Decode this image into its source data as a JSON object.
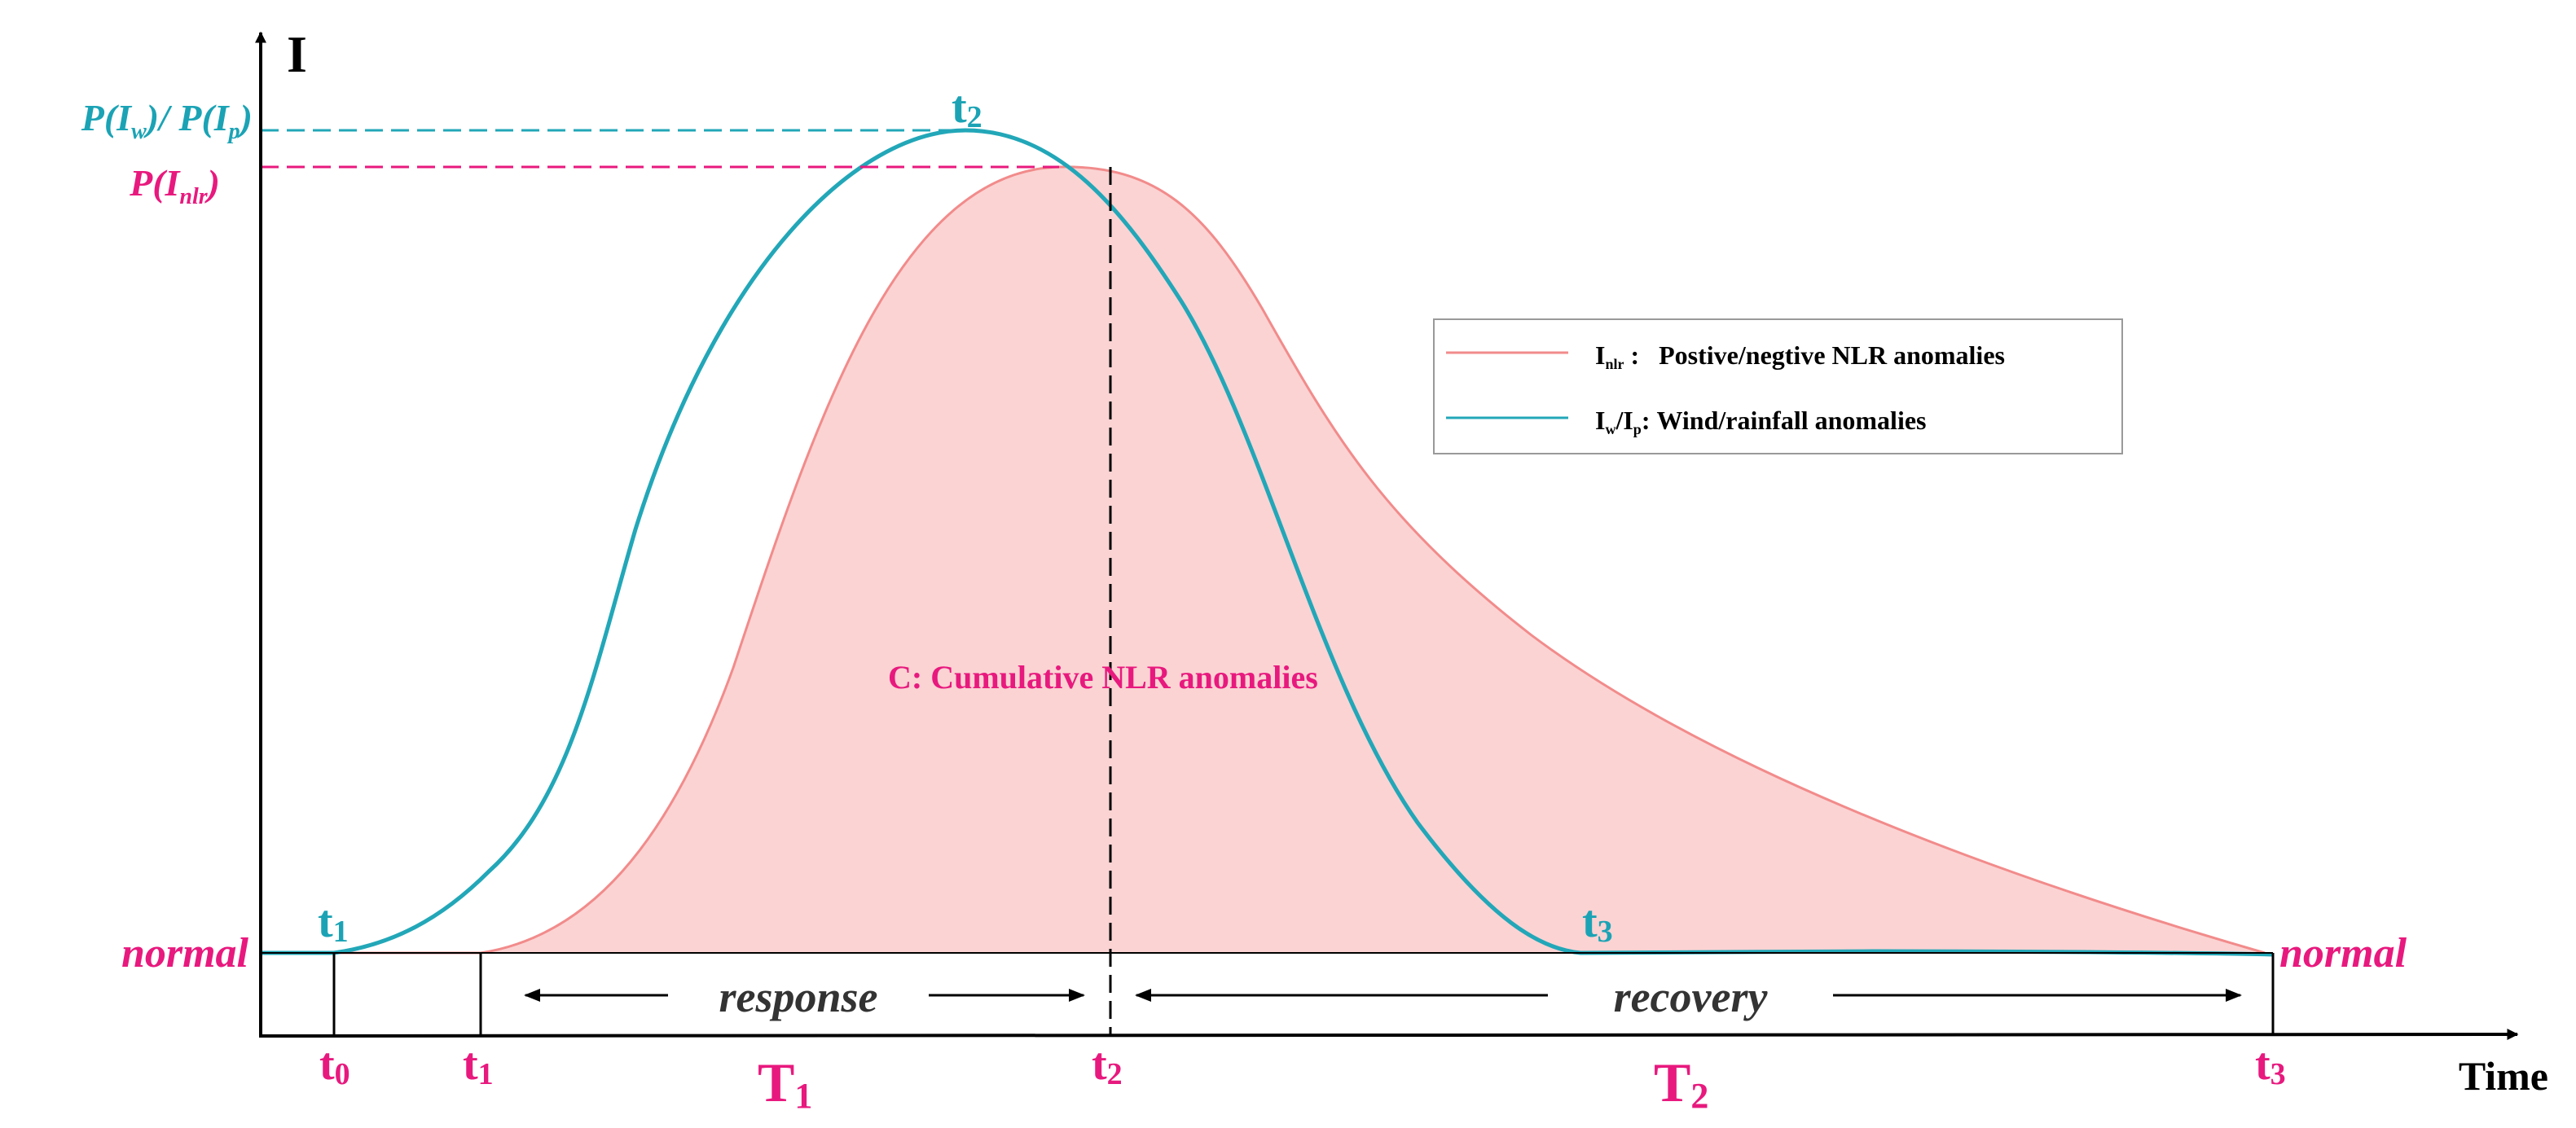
{
  "axes": {
    "y_label": "I",
    "x_label": "Time"
  },
  "baseline": {
    "left_label": "normal",
    "right_label": "normal"
  },
  "peak_labels": {
    "wind_rain": "P(I_w)/ P(I_p)",
    "wind_rain_parts": {
      "p1": "P(I",
      "s1": "w",
      "mid": ")/ P(I",
      "s2": "p",
      "end": ")"
    },
    "nlr": "P(I_nlr)",
    "nlr_parts": {
      "p1": "P(I",
      "s1": "nlr",
      "end": ")"
    }
  },
  "curve_point_labels": {
    "t1": {
      "base": "t",
      "sub": "1"
    },
    "t2": {
      "base": "t",
      "sub": "2"
    },
    "t3": {
      "base": "t",
      "sub": "3"
    }
  },
  "axis_tick_labels": {
    "t0": {
      "base": "t",
      "sub": "0"
    },
    "t1": {
      "base": "t",
      "sub": "1"
    },
    "t2": {
      "base": "t",
      "sub": "2"
    },
    "t3": {
      "base": "t",
      "sub": "3"
    }
  },
  "phases": {
    "response": "response",
    "recovery": "recovery",
    "T1": {
      "base": "T",
      "sub": "1"
    },
    "T2": {
      "base": "T",
      "sub": "2"
    }
  },
  "area_label": "C: Cumulative NLR anomalies",
  "legend": {
    "nlr": {
      "sym": "I",
      "sym_sub": "nlr",
      "sep": " :",
      "desc": "Postive/negtive NLR anomalies"
    },
    "wind": {
      "sym1": "I",
      "sub1": "w",
      "slash": "/",
      "sym2": "I",
      "sub2": "p",
      "sep": ":",
      "desc": "Wind/rainfall anomalies"
    }
  },
  "colors": {
    "nlr_line": "#F28B8B",
    "nlr_fill": "#FBD3D3",
    "wind_line": "#22A7B8",
    "magenta": "#E8197E",
    "teal_text": "#1BA3B5",
    "axis": "#000000",
    "dark_text": "#333333"
  }
}
